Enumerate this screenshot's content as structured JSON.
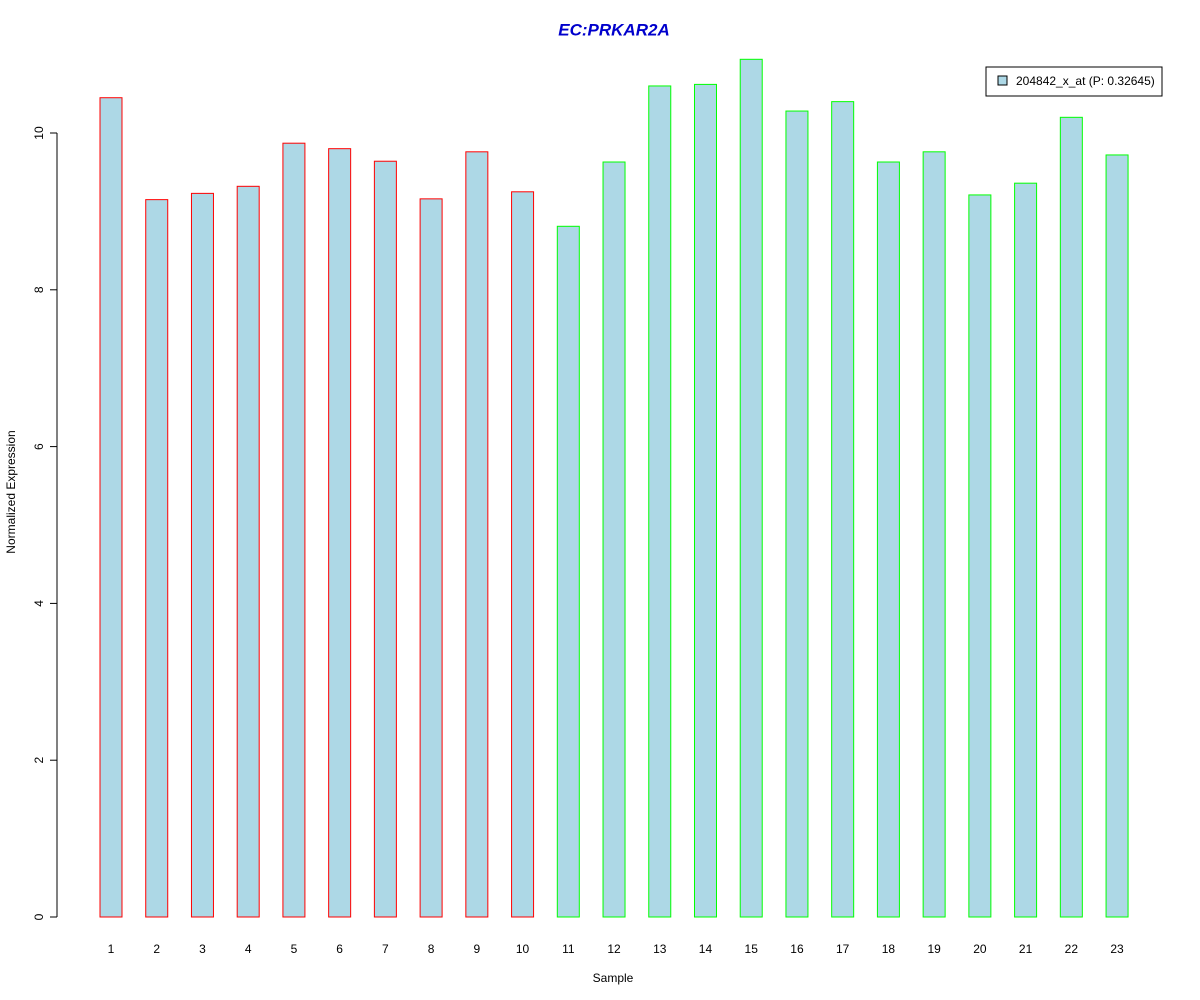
{
  "chart_data": {
    "type": "bar",
    "title": "EC:PRKAR2A",
    "x_label": "Sample",
    "y_label": "Normalized Expression",
    "categories": [
      "1",
      "2",
      "3",
      "4",
      "5",
      "6",
      "7",
      "8",
      "9",
      "10",
      "11",
      "12",
      "13",
      "14",
      "15",
      "16",
      "17",
      "18",
      "19",
      "20",
      "21",
      "22",
      "23"
    ],
    "series": [
      {
        "name": "204842_x_at (P: 0.32645)",
        "color": "#add8e6",
        "edge_colors": [
          "#ff0000",
          "#ff0000",
          "#ff0000",
          "#ff0000",
          "#ff0000",
          "#ff0000",
          "#ff0000",
          "#ff0000",
          "#ff0000",
          "#ff0000",
          "#00ff00",
          "#00ff00",
          "#00ff00",
          "#00ff00",
          "#00ff00",
          "#00ff00",
          "#00ff00",
          "#00ff00",
          "#00ff00",
          "#00ff00",
          "#00ff00",
          "#00ff00",
          "#00ff00"
        ],
        "values": [
          10.45,
          9.15,
          9.23,
          9.32,
          9.87,
          9.8,
          9.64,
          9.16,
          9.76,
          9.25,
          8.81,
          9.63,
          10.6,
          10.62,
          10.94,
          10.28,
          10.4,
          9.63,
          9.76,
          9.21,
          9.36,
          10.2,
          9.72
        ]
      }
    ],
    "ylim": [
      0,
      11.4
    ],
    "yticks": [
      0,
      2,
      4,
      6,
      8,
      10
    ],
    "grid": false,
    "legend": "top-right"
  }
}
